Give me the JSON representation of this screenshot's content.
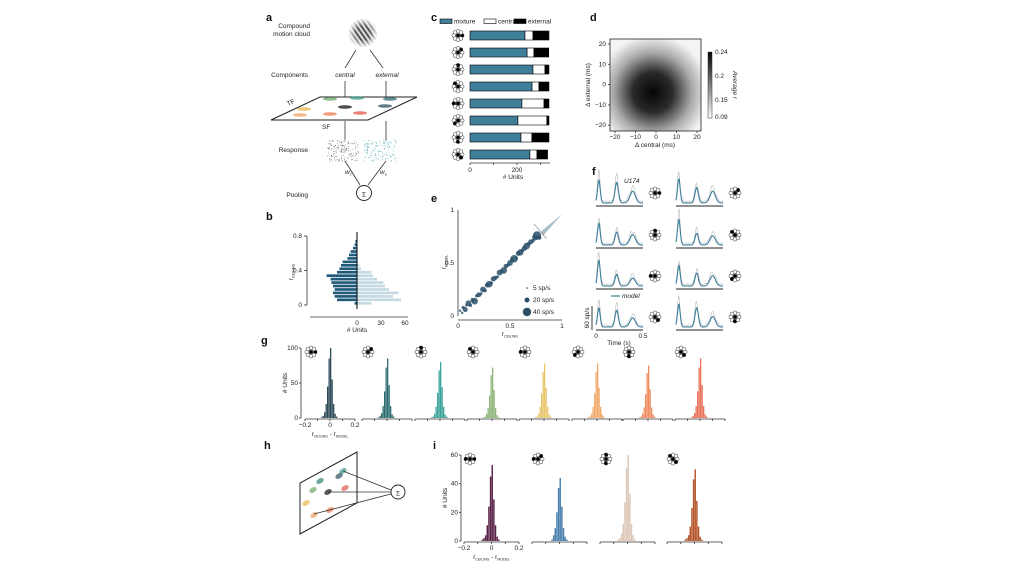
{
  "panel_labels": {
    "a": "a",
    "b": "b",
    "c": "c",
    "d": "d",
    "e": "e",
    "f": "f",
    "g": "g",
    "h": "h",
    "i": "i"
  },
  "panel_a": {
    "stimulus_label_1": "Compound",
    "stimulus_label_2": "motion cloud",
    "components_label": "Components",
    "central": "central",
    "external": "external",
    "tf": "TF",
    "sf": "SF",
    "response_label": "Response",
    "weight_c": "w",
    "weight_c_sub": "c",
    "weight_e": "w",
    "weight_e_sub": "e",
    "pooling_label": "Pooling",
    "sum_symbol": "Σ",
    "blob_colors": [
      "#6aa86a",
      "#3a9a8e",
      "#2f6f78",
      "#e8b44a",
      "#111111",
      "#2c5060",
      "#f0a060",
      "#ee7a50",
      "#e0584a"
    ]
  },
  "sum_symbol": "Σ",
  "chart_data": [
    {
      "id": "b",
      "type": "bar",
      "orientation": "horizontal-mirrored",
      "ylabel": "r",
      "ylabel_sub": "CEILING",
      "xlabel": "# Units",
      "yticks": [
        "0",
        "0.4",
        "0.8"
      ],
      "xticks": [
        "0",
        "30",
        "60"
      ],
      "ylim": [
        0,
        0.8
      ],
      "xlim": [
        -60,
        60
      ],
      "bin_width": 0.04,
      "series": [
        {
          "name": "left",
          "color": "#1f5a7a",
          "values": [
            3,
            25,
            28,
            30,
            28,
            30,
            32,
            33,
            38,
            25,
            22,
            20,
            18,
            12,
            10,
            8,
            5,
            3,
            2
          ]
        },
        {
          "name": "right",
          "color": "#c5dae3",
          "values": [
            18,
            55,
            45,
            52,
            40,
            35,
            33,
            25,
            20,
            18,
            5,
            3,
            1,
            0,
            0,
            0,
            0,
            0,
            0
          ]
        }
      ]
    },
    {
      "id": "c",
      "type": "bar",
      "orientation": "horizontal-stacked",
      "xlabel": "# Units",
      "xticks": [
        "0",
        "200"
      ],
      "xlim": [
        0,
        340
      ],
      "legend": [
        {
          "name": "mixture",
          "color": "#3f7f9a"
        },
        {
          "name": "central",
          "color": "#ffffff"
        },
        {
          "name": "external",
          "color": "#000000"
        }
      ],
      "rows": [
        {
          "dir": "E",
          "values": [
            234,
            34,
            68
          ]
        },
        {
          "dir": "NE",
          "values": [
            243,
            29,
            63
          ]
        },
        {
          "dir": "N",
          "values": [
            268,
            51,
            17
          ]
        },
        {
          "dir": "NW",
          "values": [
            264,
            29,
            43
          ]
        },
        {
          "dir": "W",
          "values": [
            221,
            94,
            21
          ]
        },
        {
          "dir": "SW",
          "values": [
            204,
            123,
            9
          ]
        },
        {
          "dir": "S",
          "values": [
            217,
            46,
            73
          ]
        },
        {
          "dir": "SE",
          "values": [
            255,
            30,
            45
          ]
        }
      ]
    },
    {
      "id": "d",
      "type": "heatmap",
      "xlabel": "Δ central (ms)",
      "ylabel": "Δ external (ms)",
      "xticks": [
        "−20",
        "−10",
        "0",
        "10",
        "20"
      ],
      "yticks": [
        "20",
        "10",
        "0",
        "−10",
        "−20"
      ],
      "xlim": [
        -24,
        22
      ],
      "ylim": [
        -24,
        22
      ],
      "peak_at": [
        -2,
        -4
      ],
      "colorbar_label": "Average r",
      "colorbar_ticks": [
        "0.24",
        "0.2",
        "0.15",
        "0.09"
      ],
      "zlim": [
        0.09,
        0.24
      ]
    },
    {
      "id": "e",
      "type": "scatter",
      "xlabel": "r",
      "xlabel_sub": "CEILING",
      "ylabel": "r",
      "ylabel_sub": "MODEL",
      "xticks": [
        "0",
        "0.5",
        "1"
      ],
      "yticks": [
        "0",
        "0.5",
        "1"
      ],
      "xlim": [
        0,
        1
      ],
      "ylim": [
        0,
        1
      ],
      "color": "#2a5068",
      "legend": [
        "5 sp/s",
        "20 sp/s",
        "40 sp/s"
      ],
      "points": [
        [
          0.02,
          0.05,
          5
        ],
        [
          0.04,
          0.03,
          5
        ],
        [
          0.05,
          0.08,
          10
        ],
        [
          0.07,
          0.06,
          20
        ],
        [
          0.08,
          0.1,
          5
        ],
        [
          0.1,
          0.12,
          25
        ],
        [
          0.12,
          0.1,
          10
        ],
        [
          0.14,
          0.15,
          15
        ],
        [
          0.16,
          0.14,
          30
        ],
        [
          0.18,
          0.19,
          10
        ],
        [
          0.2,
          0.2,
          20
        ],
        [
          0.22,
          0.21,
          8
        ],
        [
          0.24,
          0.25,
          25
        ],
        [
          0.26,
          0.24,
          12
        ],
        [
          0.28,
          0.29,
          18
        ],
        [
          0.3,
          0.3,
          30
        ],
        [
          0.32,
          0.31,
          10
        ],
        [
          0.34,
          0.35,
          22
        ],
        [
          0.36,
          0.36,
          15
        ],
        [
          0.38,
          0.37,
          8
        ],
        [
          0.4,
          0.41,
          25
        ],
        [
          0.42,
          0.42,
          12
        ],
        [
          0.44,
          0.43,
          30
        ],
        [
          0.46,
          0.47,
          18
        ],
        [
          0.48,
          0.48,
          10
        ],
        [
          0.5,
          0.5,
          25
        ],
        [
          0.52,
          0.53,
          15
        ],
        [
          0.54,
          0.54,
          35
        ],
        [
          0.56,
          0.55,
          8
        ],
        [
          0.58,
          0.59,
          20
        ],
        [
          0.6,
          0.6,
          28
        ],
        [
          0.62,
          0.62,
          12
        ],
        [
          0.64,
          0.64,
          22
        ],
        [
          0.66,
          0.66,
          30
        ],
        [
          0.68,
          0.68,
          15
        ],
        [
          0.7,
          0.7,
          20
        ],
        [
          0.72,
          0.71,
          12
        ],
        [
          0.74,
          0.74,
          25
        ],
        [
          0.76,
          0.76,
          40
        ],
        [
          0.78,
          0.74,
          18
        ]
      ]
    },
    {
      "id": "f",
      "type": "line",
      "xlabel": "Time (s)",
      "xticks": [
        "0",
        "0.5"
      ],
      "scalebar": "60 sp/s",
      "unit_label": "U174",
      "legend": "model",
      "color": "#3f7f9a",
      "panels": [
        {
          "dir": "E",
          "peaks": [
            0.9,
            0.8,
            0.45
          ]
        },
        {
          "dir": "NE",
          "peaks": [
            0.95,
            0.6,
            0.45
          ]
        },
        {
          "dir": "N",
          "peaks": [
            0.85,
            0.5,
            0.4
          ]
        },
        {
          "dir": "NW",
          "peaks": [
            1.0,
            0.45,
            0.35
          ]
        },
        {
          "dir": "W",
          "peaks": [
            1.0,
            0.45,
            0.3
          ]
        },
        {
          "dir": "SW",
          "peaks": [
            0.8,
            0.5,
            0.4
          ]
        },
        {
          "dir": "SE",
          "peaks": [
            0.75,
            0.65,
            0.35
          ]
        },
        {
          "dir": "S",
          "peaks": [
            0.9,
            0.75,
            0.4
          ]
        }
      ]
    },
    {
      "id": "g",
      "type": "bar",
      "ylabel": "# Units",
      "xlabel": "r",
      "xlabel_sub": "CEILING",
      "xlabel2": "r",
      "xlabel2_sub": "MODEL",
      "yticks": [
        "0",
        "50",
        "100"
      ],
      "ylim": [
        0,
        100
      ],
      "xticks": [
        "−0.2",
        "0",
        "0.2"
      ],
      "xlim": [
        -0.2,
        0.2
      ],
      "bin_start": -0.072,
      "bin_width": 0.012,
      "panels": [
        {
          "dir": "E",
          "color": "#2c4a5a",
          "values": [
            1,
            3,
            8,
            20,
            45,
            85,
            100,
            55,
            20,
            6,
            2
          ]
        },
        {
          "dir": "NE",
          "color": "#2e6e70",
          "values": [
            1,
            3,
            7,
            17,
            38,
            72,
            85,
            47,
            17,
            5,
            2
          ]
        },
        {
          "dir": "N",
          "color": "#3aa39a",
          "values": [
            1,
            2,
            6,
            16,
            36,
            68,
            80,
            44,
            16,
            5,
            2
          ]
        },
        {
          "dir": "NW",
          "color": "#8fb67a",
          "values": [
            1,
            2,
            6,
            14,
            32,
            61,
            72,
            40,
            14,
            4,
            1
          ]
        },
        {
          "dir": "W",
          "color": "#e8c66a",
          "values": [
            1,
            2,
            6,
            16,
            35,
            66,
            78,
            43,
            16,
            5,
            2
          ]
        },
        {
          "dir": "SW",
          "color": "#f0a868",
          "values": [
            1,
            2,
            6,
            16,
            35,
            66,
            78,
            43,
            16,
            5,
            2
          ]
        },
        {
          "dir": "S",
          "color": "#ef8c5e",
          "values": [
            1,
            2,
            6,
            15,
            34,
            64,
            75,
            41,
            15,
            5,
            2
          ]
        },
        {
          "dir": "SE",
          "color": "#e8735a",
          "values": [
            1,
            3,
            7,
            17,
            38,
            72,
            85,
            47,
            17,
            5,
            2
          ]
        }
      ]
    },
    {
      "id": "i",
      "type": "bar",
      "ylabel": "# Units",
      "xlabel": "r",
      "xlabel_sub": "CEILING",
      "xlabel2": "r",
      "xlabel2_sub": "MODEL",
      "yticks": [
        "0",
        "20",
        "40",
        "60"
      ],
      "ylim": [
        0,
        60
      ],
      "xticks": [
        "−0.2",
        "0",
        "0.2"
      ],
      "xlim": [
        -0.2,
        0.2
      ],
      "bin_start": -0.072,
      "bin_width": 0.012,
      "panels": [
        {
          "dirs": [
            "W",
            "E"
          ],
          "color": "#5a2348",
          "values": [
            1,
            2,
            4,
            11,
            24,
            45,
            53,
            29,
            11,
            3,
            1
          ]
        },
        {
          "dirs": [
            "NE",
            "W"
          ],
          "color": "#4a7fae",
          "values": [
            0,
            1,
            4,
            9,
            20,
            37,
            44,
            24,
            9,
            3,
            1
          ]
        },
        {
          "dirs": [
            "N",
            "S"
          ],
          "color": "#dcc7b8",
          "values": [
            1,
            2,
            5,
            12,
            27,
            51,
            60,
            33,
            12,
            4,
            1
          ]
        },
        {
          "dirs": [
            "NW",
            "SE"
          ],
          "color": "#b5552a",
          "values": [
            1,
            2,
            4,
            10,
            23,
            43,
            50,
            28,
            10,
            3,
            1
          ]
        }
      ]
    }
  ]
}
